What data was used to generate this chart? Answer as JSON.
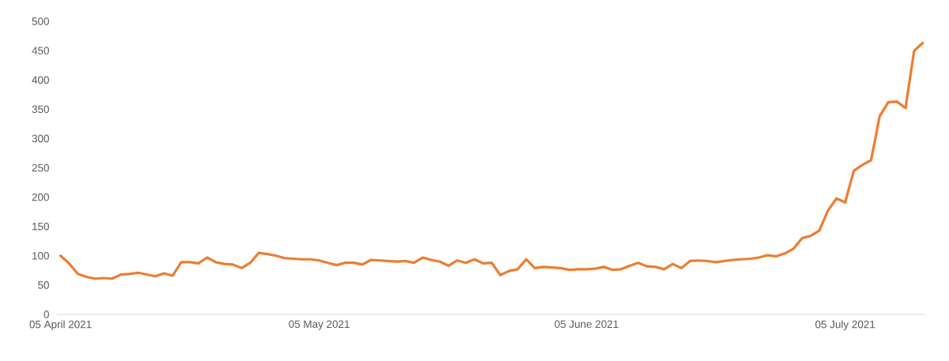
{
  "chart_data": {
    "type": "line",
    "x": [
      "2021-04-05",
      "2021-04-06",
      "2021-04-07",
      "2021-04-08",
      "2021-04-09",
      "2021-04-10",
      "2021-04-11",
      "2021-04-12",
      "2021-04-13",
      "2021-04-14",
      "2021-04-15",
      "2021-04-16",
      "2021-04-17",
      "2021-04-18",
      "2021-04-19",
      "2021-04-20",
      "2021-04-21",
      "2021-04-22",
      "2021-04-23",
      "2021-04-24",
      "2021-04-25",
      "2021-04-26",
      "2021-04-27",
      "2021-04-28",
      "2021-04-29",
      "2021-04-30",
      "2021-05-01",
      "2021-05-02",
      "2021-05-03",
      "2021-05-04",
      "2021-05-05",
      "2021-05-06",
      "2021-05-07",
      "2021-05-08",
      "2021-05-09",
      "2021-05-10",
      "2021-05-11",
      "2021-05-12",
      "2021-05-13",
      "2021-05-14",
      "2021-05-15",
      "2021-05-16",
      "2021-05-17",
      "2021-05-18",
      "2021-05-19",
      "2021-05-20",
      "2021-05-21",
      "2021-05-22",
      "2021-05-23",
      "2021-05-24",
      "2021-05-25",
      "2021-05-26",
      "2021-05-27",
      "2021-05-28",
      "2021-05-29",
      "2021-05-30",
      "2021-05-31",
      "2021-06-01",
      "2021-06-02",
      "2021-06-03",
      "2021-06-04",
      "2021-06-05",
      "2021-06-06",
      "2021-06-07",
      "2021-06-08",
      "2021-06-09",
      "2021-06-10",
      "2021-06-11",
      "2021-06-12",
      "2021-06-13",
      "2021-06-14",
      "2021-06-15",
      "2021-06-16",
      "2021-06-17",
      "2021-06-18",
      "2021-06-19",
      "2021-06-20",
      "2021-06-21",
      "2021-06-22",
      "2021-06-23",
      "2021-06-24",
      "2021-06-25",
      "2021-06-26",
      "2021-06-27",
      "2021-06-28",
      "2021-06-29",
      "2021-06-30",
      "2021-07-01",
      "2021-07-02",
      "2021-07-03",
      "2021-07-04",
      "2021-07-05",
      "2021-07-06",
      "2021-07-07",
      "2021-07-08",
      "2021-07-09",
      "2021-07-10",
      "2021-07-11",
      "2021-07-12",
      "2021-07-13",
      "2021-07-14"
    ],
    "series": [
      {
        "color": "#ed7d31",
        "values": [
          100,
          87,
          69,
          64,
          61,
          62,
          61,
          68,
          69,
          71,
          68,
          65,
          70,
          66,
          89,
          89,
          87,
          97,
          89,
          86,
          85,
          79,
          88,
          105,
          103,
          100,
          96,
          95,
          94,
          94,
          92,
          88,
          84,
          88,
          88,
          85,
          93,
          92,
          91,
          90,
          91,
          88,
          97,
          93,
          90,
          83,
          92,
          88,
          94,
          87,
          88,
          67,
          74,
          77,
          94,
          79,
          81,
          80,
          79,
          76,
          77,
          77,
          78,
          81,
          76,
          77,
          83,
          88,
          82,
          81,
          77,
          86,
          79,
          91,
          92,
          91,
          89,
          91,
          93,
          94,
          95,
          97,
          101,
          99,
          104,
          112,
          130,
          134,
          143,
          177,
          198,
          191,
          245,
          255,
          263,
          338,
          362,
          363,
          352,
          450,
          463
        ]
      }
    ],
    "xlim": [
      "2021-04-04T14:00",
      "2021-07-14T07:00"
    ],
    "xticks": [
      {
        "value": "2021-04-05",
        "label": "05 April 2021"
      },
      {
        "value": "2021-05-05",
        "label": "05 May 2021"
      },
      {
        "value": "2021-06-05",
        "label": "05 June 2021"
      },
      {
        "value": "2021-07-05",
        "label": "05 July 2021"
      }
    ],
    "ylim": [
      0,
      500
    ],
    "yticks": [
      0,
      50,
      100,
      150,
      200,
      250,
      300,
      350,
      400,
      450,
      500
    ],
    "grid": false,
    "line_style": "solid"
  }
}
